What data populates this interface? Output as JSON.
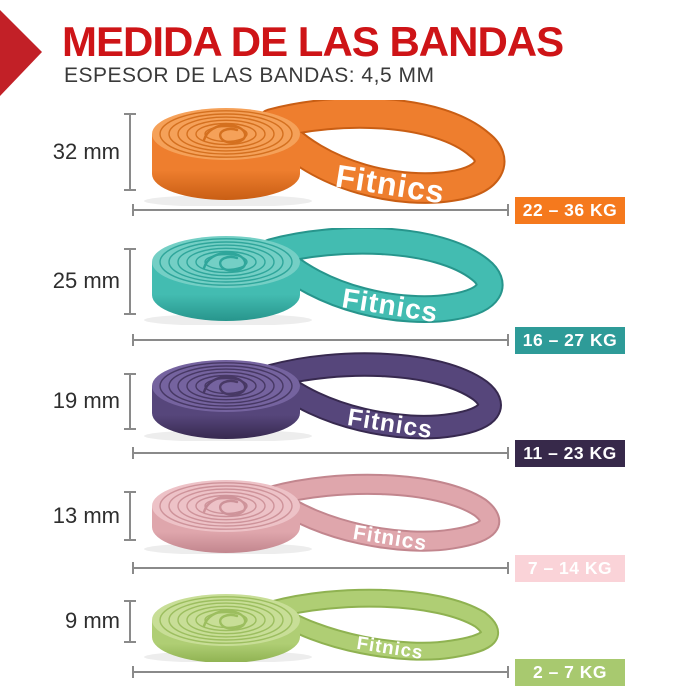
{
  "header": {
    "title": "MEDIDA DE LAS BANDAS",
    "subtitle": "ESPESOR DE LAS BANDAS: 4,5 MM",
    "accent_color": "#CE1417",
    "arrow_color": "#C22027"
  },
  "brand_label": "Fitnics",
  "measure_line_color": "#8A8A8A",
  "bands": [
    {
      "size_label": "32 mm",
      "weight_label": "22 – 36 KG",
      "colors": {
        "main": "#EE7E2E",
        "light": "#F5A159",
        "dark": "#C95E14",
        "groove": "#D4701F",
        "badge_bg": "#F5791D",
        "badge_text": "#FFFFFF"
      }
    },
    {
      "size_label": "25 mm",
      "weight_label": "16 – 27 KG",
      "colors": {
        "main": "#43BCB1",
        "light": "#74CFC5",
        "dark": "#27958C",
        "groove": "#2FA69B",
        "badge_bg": "#2E9B98",
        "badge_text": "#FFFFFF"
      }
    },
    {
      "size_label": "19 mm",
      "weight_label": "11 – 23 KG",
      "colors": {
        "main": "#56467B",
        "light": "#75639F",
        "dark": "#37294F",
        "groove": "#473864",
        "badge_bg": "#37294A",
        "badge_text": "#FFFFFF"
      }
    },
    {
      "size_label": "13 mm",
      "weight_label": "7 – 14 KG",
      "colors": {
        "main": "#DFA6AC",
        "light": "#EDC2C7",
        "dark": "#C2868E",
        "groove": "#CE939A",
        "badge_bg": "#FAD3D8",
        "badge_text": "#FFFFFF"
      }
    },
    {
      "size_label": "9 mm",
      "weight_label": "2 – 7 KG",
      "colors": {
        "main": "#AFCE74",
        "light": "#C8DE97",
        "dark": "#8FB251",
        "groove": "#9CBE5F",
        "badge_bg": "#A8C96F",
        "badge_text": "#FFFFFF"
      }
    }
  ]
}
